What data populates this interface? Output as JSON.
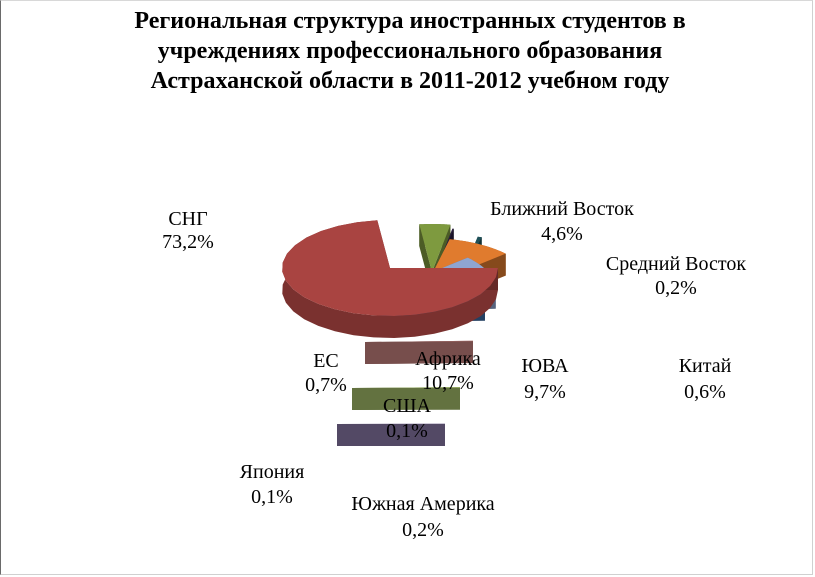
{
  "title_lines": [
    "Региональная структура иностранных студентов в",
    "учреждениях профессионального образования",
    "Астраханской области в 2011-2012 учебном году"
  ],
  "chart_data": {
    "type": "pie",
    "title": "Региональная структура иностранных студентов в учреждениях профессионального образования Астраханской области в 2011-2012 учебном году",
    "categories": [
      "СНГ",
      "Ближний Восток",
      "Средний Восток",
      "Китай",
      "ЮВА",
      "Африка",
      "ЕС",
      "США",
      "Южная Америка",
      "Япония"
    ],
    "values": [
      73.2,
      4.6,
      0.2,
      0.6,
      9.7,
      10.7,
      0.7,
      0.1,
      0.2,
      0.1
    ],
    "value_labels": [
      "73,2%",
      "4,6%",
      "0,2%",
      "0,6%",
      "9,7%",
      "10,7%",
      "0,7%",
      "0,1%",
      "0,2%",
      "0,1%"
    ],
    "colors": [
      "#a94441",
      "#7e9a3f",
      "#2b2040",
      "#1e5058",
      "#e07b2e",
      "#8fa5d0",
      "#3c6aa3",
      "#c7827f",
      "#a5be6b",
      "#8a7aa8"
    ],
    "legend": "none",
    "style": "3d-exploded"
  }
}
